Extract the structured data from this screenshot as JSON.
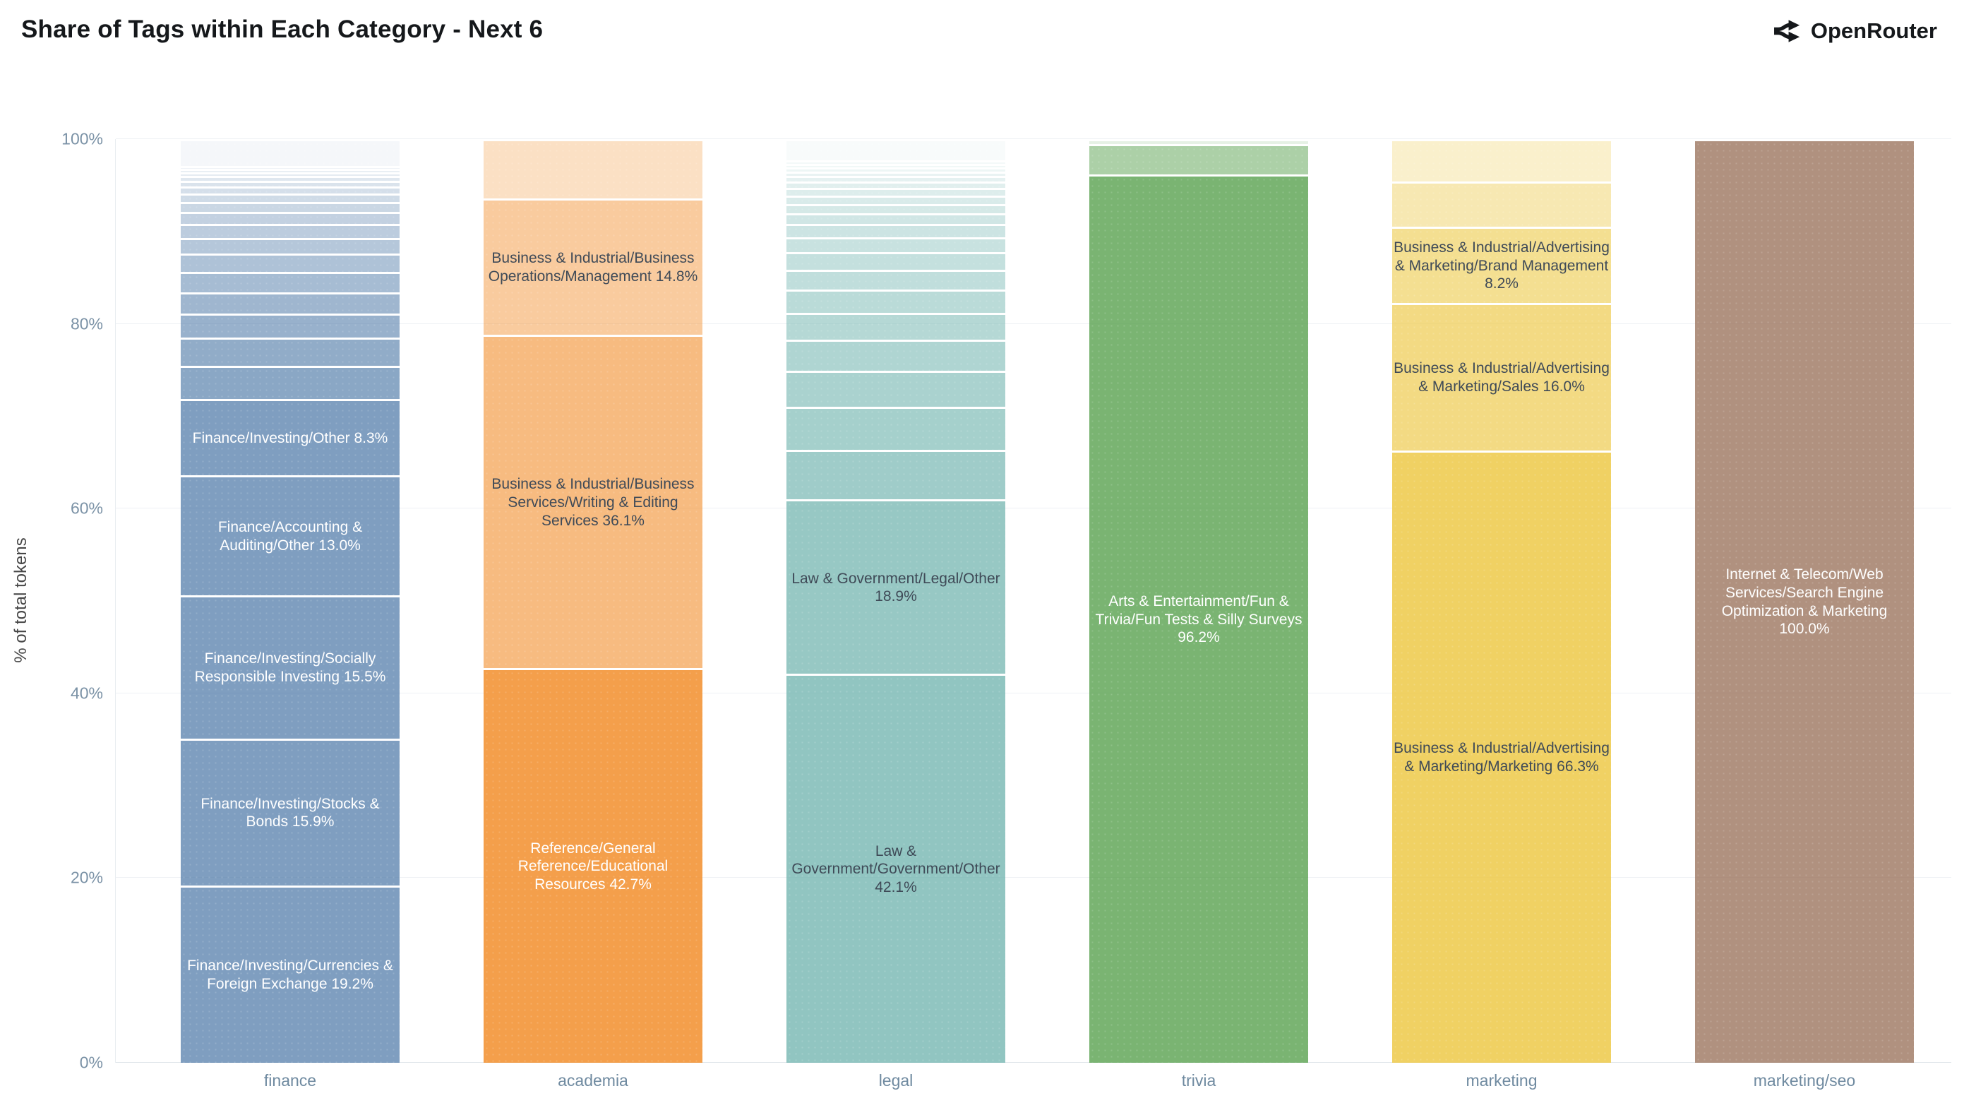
{
  "title": "Share of Tags within Each Category - Next 6",
  "brand": {
    "name": "OpenRouter",
    "icon": "openrouter-split-arrow-icon",
    "color": "#15181b"
  },
  "y_axis": {
    "title": "% of total tokens",
    "ticks": [
      {
        "label": "0%",
        "value": 0
      },
      {
        "label": "20%",
        "value": 20
      },
      {
        "label": "40%",
        "value": 40
      },
      {
        "label": "60%",
        "value": 60
      },
      {
        "label": "80%",
        "value": 80
      },
      {
        "label": "100%",
        "value": 100
      }
    ]
  },
  "chart_data": {
    "type": "bar",
    "stacked": true,
    "unit": "percent",
    "ylim": [
      0,
      100
    ],
    "grid": true,
    "legend": false,
    "categories": [
      "finance",
      "academia",
      "legal",
      "trivia",
      "marketing",
      "marketing/seo"
    ],
    "bars": [
      {
        "category": "finance",
        "base_color": "#4e79a7",
        "segments": [
          {
            "text": "Finance/Investing/Currencies & Foreign Exchange 19.2%",
            "value": 19.2,
            "alpha": 0.72,
            "text_style": "light"
          },
          {
            "text": "Finance/Investing/Stocks & Bonds 15.9%",
            "value": 15.9,
            "alpha": 0.72,
            "text_style": "light"
          },
          {
            "text": "Finance/Investing/Socially Responsible Investing 15.5%",
            "value": 15.5,
            "alpha": 0.72,
            "text_style": "light"
          },
          {
            "text": "Finance/Accounting & Auditing/Other 13.0%",
            "value": 13.0,
            "alpha": 0.72,
            "text_style": "light"
          },
          {
            "text": "Finance/Investing/Other 8.3%",
            "value": 8.3,
            "alpha": 0.72,
            "text_style": "light"
          },
          {
            "text": "",
            "value": 3.6,
            "alpha": 0.66
          },
          {
            "text": "",
            "value": 3.0,
            "alpha": 0.62
          },
          {
            "text": "",
            "value": 2.6,
            "alpha": 0.58
          },
          {
            "text": "",
            "value": 2.3,
            "alpha": 0.54
          },
          {
            "text": "",
            "value": 2.2,
            "alpha": 0.5
          },
          {
            "text": "",
            "value": 2.0,
            "alpha": 0.46
          },
          {
            "text": "",
            "value": 1.7,
            "alpha": 0.42
          },
          {
            "text": "",
            "value": 1.5,
            "alpha": 0.38
          },
          {
            "text": "",
            "value": 1.3,
            "alpha": 0.34
          },
          {
            "text": "",
            "value": 1.1,
            "alpha": 0.3
          },
          {
            "text": "",
            "value": 0.9,
            "alpha": 0.27
          },
          {
            "text": "",
            "value": 0.8,
            "alpha": 0.24
          },
          {
            "text": "",
            "value": 0.6,
            "alpha": 0.21
          },
          {
            "text": "",
            "value": 0.5,
            "alpha": 0.18
          },
          {
            "text": "",
            "value": 0.4,
            "alpha": 0.15
          },
          {
            "text": "",
            "value": 0.4,
            "alpha": 0.12
          },
          {
            "text": "",
            "value": 0.3,
            "alpha": 0.09
          },
          {
            "text": "",
            "value": 2.9,
            "alpha": 0.06
          }
        ]
      },
      {
        "category": "academia",
        "base_color": "#f28e2b",
        "segments": [
          {
            "text": "Reference/General Reference/Educational Resources 42.7%",
            "value": 42.7,
            "alpha": 0.85,
            "text_style": "light"
          },
          {
            "text": "Business & Industrial/Business Services/Writing & Editing Services 36.1%",
            "value": 36.1,
            "alpha": 0.6,
            "text_style": "dark"
          },
          {
            "text": "Business & Industrial/Business Operations/Management 14.8%",
            "value": 14.8,
            "alpha": 0.46,
            "text_style": "dark"
          },
          {
            "text": "",
            "value": 6.4,
            "alpha": 0.28
          }
        ]
      },
      {
        "category": "legal",
        "base_color": "#76b7b2",
        "segments": [
          {
            "text": "Law & Government/Government/Other 42.1%",
            "value": 42.1,
            "alpha": 0.8,
            "text_style": "dark"
          },
          {
            "text": "Law & Government/Legal/Other 18.9%",
            "value": 18.9,
            "alpha": 0.76,
            "text_style": "dark"
          },
          {
            "text": "",
            "value": 5.4,
            "alpha": 0.7
          },
          {
            "text": "",
            "value": 4.6,
            "alpha": 0.66
          },
          {
            "text": "",
            "value": 3.9,
            "alpha": 0.62
          },
          {
            "text": "",
            "value": 3.4,
            "alpha": 0.58
          },
          {
            "text": "",
            "value": 2.9,
            "alpha": 0.54
          },
          {
            "text": "",
            "value": 2.5,
            "alpha": 0.5
          },
          {
            "text": "",
            "value": 2.2,
            "alpha": 0.46
          },
          {
            "text": "",
            "value": 1.9,
            "alpha": 0.43
          },
          {
            "text": "",
            "value": 1.6,
            "alpha": 0.4
          },
          {
            "text": "",
            "value": 1.4,
            "alpha": 0.37
          },
          {
            "text": "",
            "value": 1.2,
            "alpha": 0.34
          },
          {
            "text": "",
            "value": 1.0,
            "alpha": 0.31
          },
          {
            "text": "",
            "value": 0.9,
            "alpha": 0.28
          },
          {
            "text": "",
            "value": 0.8,
            "alpha": 0.25
          },
          {
            "text": "",
            "value": 0.7,
            "alpha": 0.22
          },
          {
            "text": "",
            "value": 0.6,
            "alpha": 0.19
          },
          {
            "text": "",
            "value": 0.5,
            "alpha": 0.16
          },
          {
            "text": "",
            "value": 0.45,
            "alpha": 0.13
          },
          {
            "text": "",
            "value": 0.4,
            "alpha": 0.1
          },
          {
            "text": "",
            "value": 0.35,
            "alpha": 0.08
          },
          {
            "text": "",
            "value": 2.3,
            "alpha": 0.05
          }
        ]
      },
      {
        "category": "trivia",
        "base_color": "#59a14f",
        "segments": [
          {
            "text": "Arts & Entertainment/Fun & Trivia/Fun Tests & Silly Surveys 96.2%",
            "value": 96.2,
            "alpha": 0.8,
            "text_style": "light"
          },
          {
            "text": "",
            "value": 3.3,
            "alpha": 0.5
          },
          {
            "text": "",
            "value": 0.5,
            "alpha": 0.15
          }
        ]
      },
      {
        "category": "marketing",
        "base_color": "#edc948",
        "segments": [
          {
            "text": "Business & Industrial/Advertising & Marketing/Marketing 66.3%",
            "value": 66.3,
            "alpha": 0.85,
            "text_style": "dark"
          },
          {
            "text": "Business & Industrial/Advertising & Marketing/Sales 16.0%",
            "value": 16.0,
            "alpha": 0.68,
            "text_style": "dark"
          },
          {
            "text": "Business & Industrial/Advertising & Marketing/Brand Management 8.2%",
            "value": 8.2,
            "alpha": 0.6,
            "text_style": "dark"
          },
          {
            "text": "",
            "value": 4.9,
            "alpha": 0.42
          },
          {
            "text": "",
            "value": 4.6,
            "alpha": 0.28
          }
        ]
      },
      {
        "category": "marketing/seo",
        "base_color": "#9c755f",
        "segments": [
          {
            "text": "Internet & Telecom/Web Services/Search Engine Optimization & Marketing 100.0%",
            "value": 100.0,
            "alpha": 0.8,
            "text_style": "light"
          }
        ]
      }
    ]
  },
  "colors": {
    "title_text": "#15181b",
    "tick_text": "#7b92a6",
    "x_label_text": "#6f8aa0",
    "axis_title_text": "#474747",
    "gridline": "#eef1f4",
    "dark_segment_text": "#3f4a57",
    "light_segment_text": "#ffffff"
  }
}
